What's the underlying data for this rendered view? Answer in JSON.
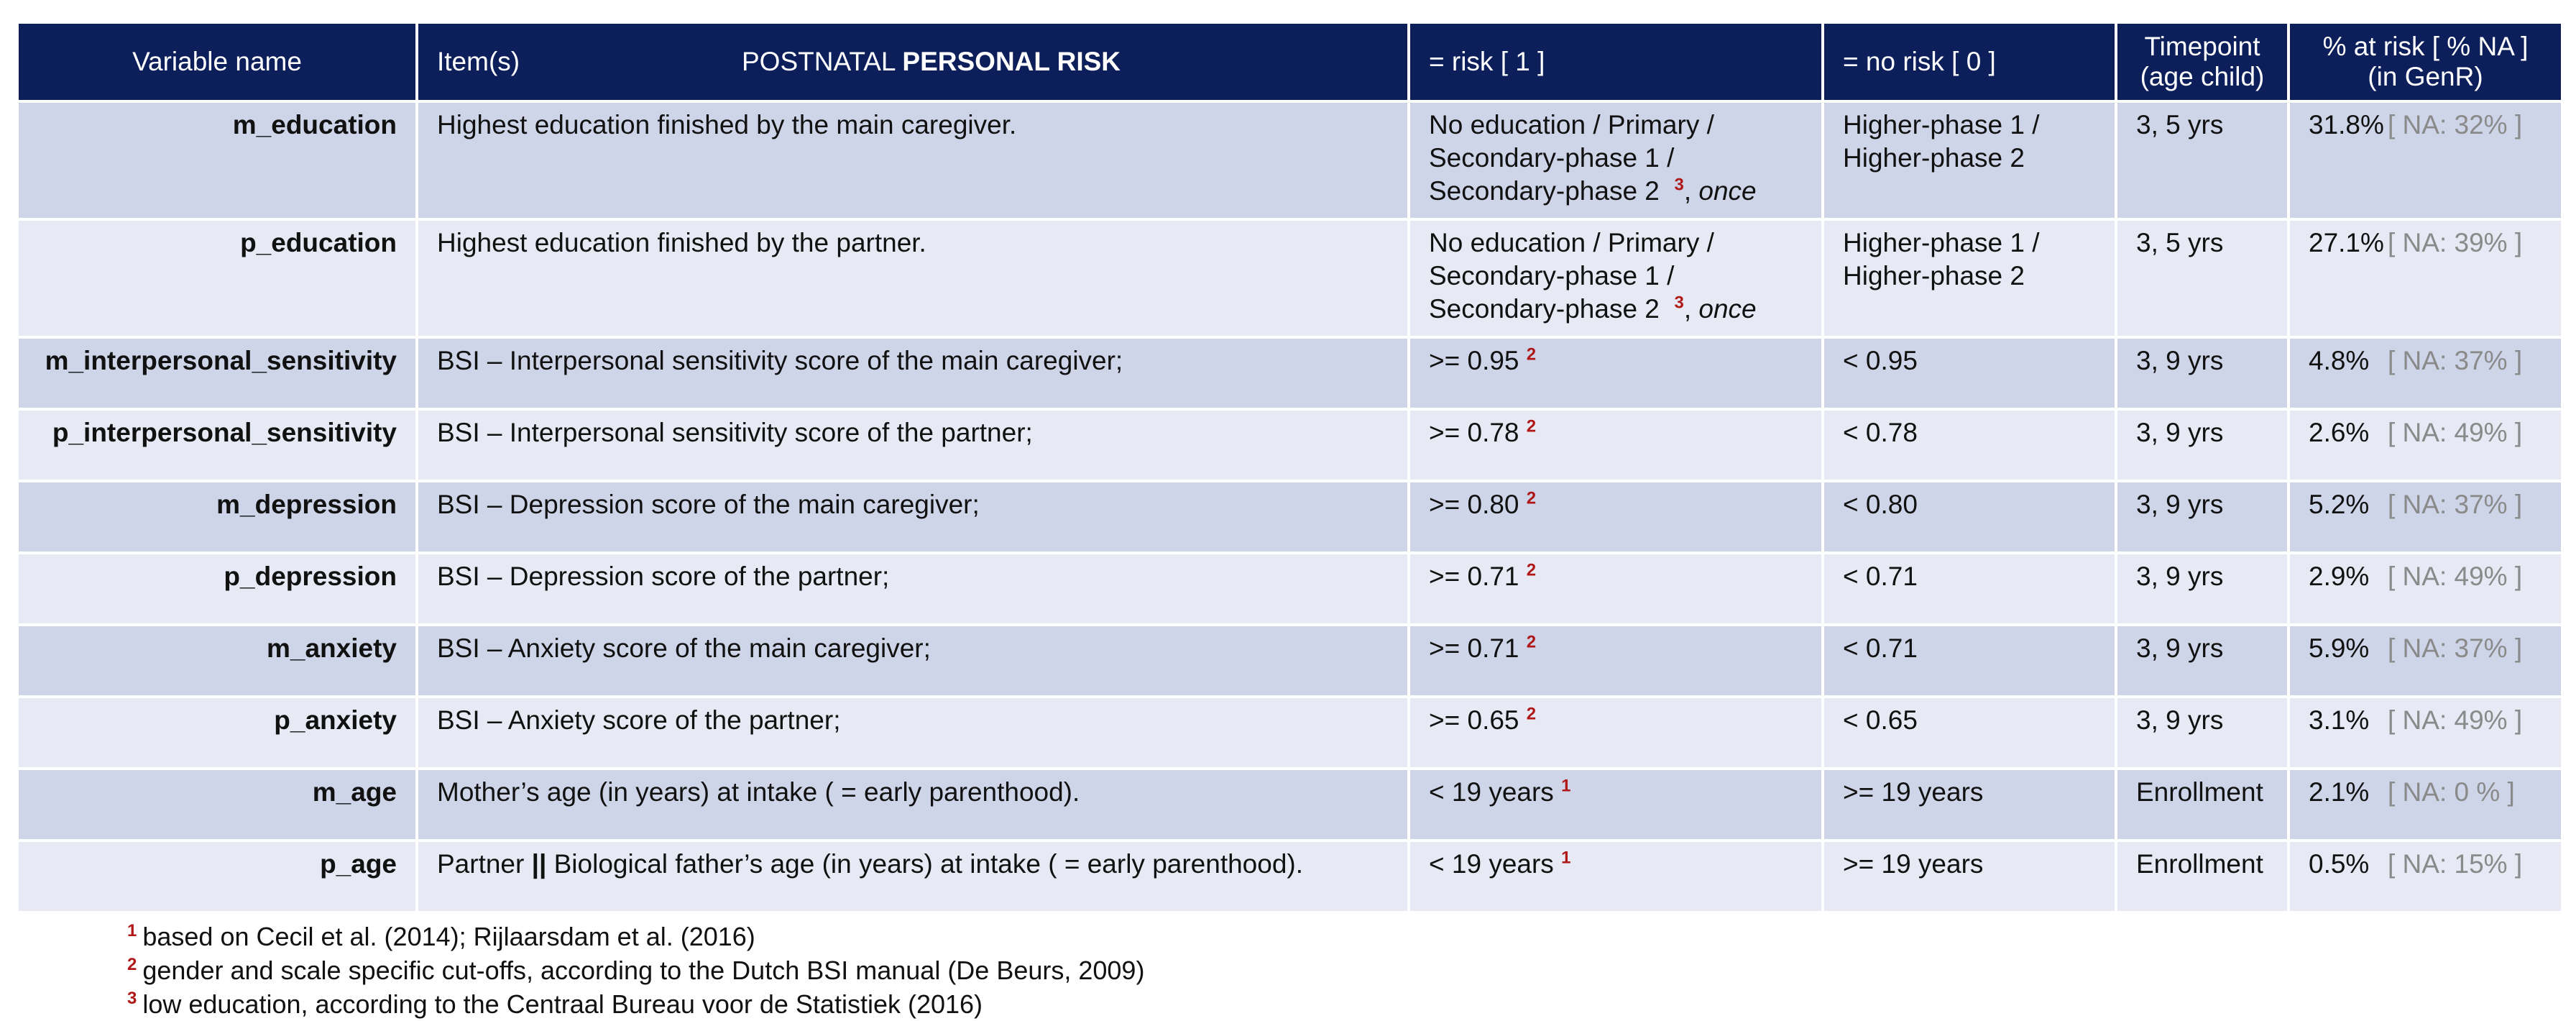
{
  "header": {
    "variable_name": "Variable name",
    "items": "Item(s)",
    "title_prefix": "POSTNATAL ",
    "title_bold": "PERSONAL RISK",
    "risk": "= risk [ 1 ]",
    "no_risk": "= no risk [ 0 ]",
    "timepoint_line1": "Timepoint",
    "timepoint_line2": "(age child)",
    "pct_line1": "% at risk [ % NA ]",
    "pct_line2": "(in GenR)"
  },
  "rows": [
    {
      "var": "m_education",
      "item": "Highest education finished by the main caregiver.",
      "risk_l1": "No education / Primary /",
      "risk_l2": "Secondary-phase 1 /",
      "risk_l3": "Secondary-phase 2",
      "risk_fn": "3",
      "risk_tail_sep": ", ",
      "risk_tail": "once",
      "norisk_l1": "Higher-phase 1 /",
      "norisk_l2": "Higher-phase 2",
      "timepoint": "3,  5 yrs",
      "pct": "31.8%",
      "na": "[ NA: 32% ]"
    },
    {
      "var": "p_education",
      "item": "Highest education finished by the partner.",
      "risk_l1": "No education / Primary /",
      "risk_l2": "Secondary-phase 1 /",
      "risk_l3": "Secondary-phase 2",
      "risk_fn": "3",
      "risk_tail_sep": ", ",
      "risk_tail": "once",
      "norisk_l1": "Higher-phase 1 /",
      "norisk_l2": "Higher-phase 2",
      "timepoint": "3,  5 yrs",
      "pct": "27.1%",
      "na": "[ NA: 39% ]"
    },
    {
      "var": "m_interpersonal_sensitivity",
      "item": "BSI – Interpersonal sensitivity score of the main caregiver;",
      "risk": ">= 0.95",
      "risk_fn": "2",
      "norisk": "< 0.95",
      "timepoint": "3,  9 yrs",
      "pct": "4.8%",
      "na": "[ NA: 37% ]"
    },
    {
      "var": "p_interpersonal_sensitivity",
      "item": "BSI – Interpersonal sensitivity score of the partner;",
      "risk": ">= 0.78",
      "risk_fn": "2",
      "norisk": "< 0.78",
      "timepoint": "3,  9 yrs",
      "pct": "2.6%",
      "na": "[ NA: 49% ]"
    },
    {
      "var": "m_depression",
      "item": "BSI – Depression score of the main caregiver;",
      "risk": ">= 0.80",
      "risk_fn": "2",
      "norisk": "< 0.80",
      "timepoint": "3,  9 yrs",
      "pct": "5.2%",
      "na": "[ NA: 37% ]"
    },
    {
      "var": "p_depression",
      "item": "BSI – Depression score of the partner;",
      "risk": ">= 0.71",
      "risk_fn": "2",
      "norisk": "< 0.71",
      "timepoint": "3,  9 yrs",
      "pct": "2.9%",
      "na": "[ NA: 49% ]"
    },
    {
      "var": "m_anxiety",
      "item": "BSI – Anxiety score of the main caregiver;",
      "risk": ">= 0.71",
      "risk_fn": "2",
      "norisk": "< 0.71",
      "timepoint": "3,  9 yrs",
      "pct": "5.9%",
      "na": "[ NA: 37% ]"
    },
    {
      "var": "p_anxiety",
      "item": "BSI – Anxiety score of the partner;",
      "risk": ">= 0.65",
      "risk_fn": "2",
      "norisk": "< 0.65",
      "timepoint": "3,  9 yrs",
      "pct": "3.1%",
      "na": "[ NA: 49% ]"
    },
    {
      "var": "m_age",
      "item": "Mother’s age (in years) at intake ( = early parenthood).",
      "risk": "< 19 years",
      "risk_fn": "1",
      "norisk": ">= 19 years",
      "timepoint": "Enrollment",
      "pct": "2.1%",
      "na": "[ NA:  0 % ]"
    },
    {
      "var": "p_age",
      "item_pre": "Partner ",
      "item_bar": "||",
      "item_post": " Biological father’s age (in years) at intake ( = early parenthood).",
      "risk": "< 19 years",
      "risk_fn": "1",
      "norisk": ">= 19 years",
      "timepoint": "Enrollment",
      "pct": "0.5%",
      "na": "[ NA: 15% ]"
    }
  ],
  "footnotes": [
    {
      "num": "1",
      "text": "based on Cecil et al. (2014); Rijlaarsdam et al. (2016)"
    },
    {
      "num": "2",
      "text": "gender and scale specific cut-offs, according to the Dutch BSI manual (De Beurs, 2009)"
    },
    {
      "num": "3",
      "text": "low education, according to the Centraal Bureau voor de Statistiek (2016)"
    }
  ],
  "colors": {
    "header_bg": "#0c1f5a",
    "row_odd": "#cfd5e8",
    "row_even": "#e7eaf4",
    "footnote_marker": "#b01818",
    "na_text": "#8a8a8a"
  }
}
